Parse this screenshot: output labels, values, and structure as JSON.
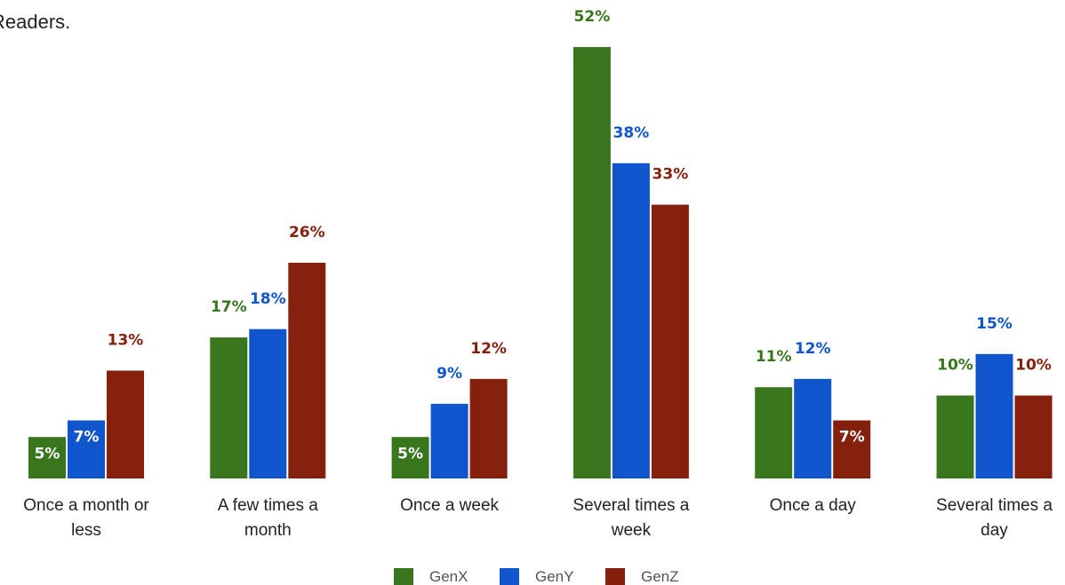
{
  "subtitle": "Readers.",
  "chart_data": {
    "type": "bar",
    "categories": [
      [
        "Once a month or",
        "less"
      ],
      [
        "A few times a",
        "month"
      ],
      [
        "Once a week"
      ],
      [
        "Several times a",
        "week"
      ],
      [
        "Once a day"
      ],
      [
        "Several times a",
        "day"
      ]
    ],
    "series": [
      {
        "name": "GenX",
        "color": "#38761d",
        "values": [
          5,
          17,
          5,
          52,
          11,
          10
        ]
      },
      {
        "name": "GenY",
        "color": "#1155cc",
        "values": [
          7,
          18,
          9,
          38,
          12,
          15
        ]
      },
      {
        "name": "GenZ",
        "color": "#85200c",
        "values": [
          13,
          26,
          12,
          33,
          7,
          10
        ]
      }
    ],
    "value_suffix": "%",
    "ylim": [
      0,
      53
    ],
    "grid": false,
    "legend_position": "bottom"
  }
}
